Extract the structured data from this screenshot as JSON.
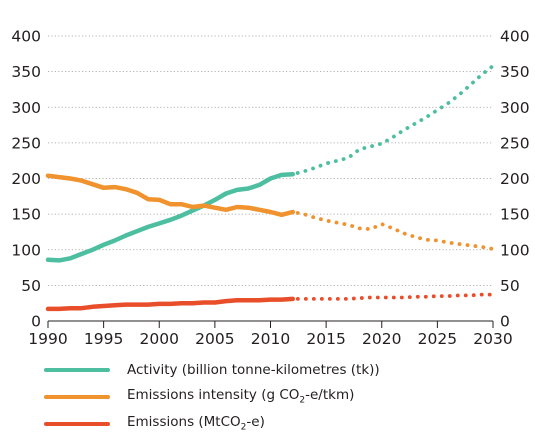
{
  "chart_data": {
    "type": "line",
    "title": "",
    "xlabel": "",
    "ylabel": "",
    "xlim": [
      1990,
      2030
    ],
    "ylim": [
      0,
      400
    ],
    "x_ticks": [
      "1990",
      "1995",
      "2000",
      "2005",
      "2010",
      "2015",
      "2020",
      "2025",
      "2030"
    ],
    "y_ticks": [
      "0",
      "50",
      "100",
      "150",
      "200",
      "250",
      "300",
      "350",
      "400"
    ],
    "grid": "horizontal dotted",
    "legend_position": "bottom-left",
    "series": [
      {
        "key": "activity",
        "name": "Activity (billion tonne-kilometres (tk))",
        "color": "#4dbfa0",
        "historical": [
          [
            1990,
            86
          ],
          [
            1991,
            85
          ],
          [
            1992,
            88
          ],
          [
            1993,
            94
          ],
          [
            1994,
            100
          ],
          [
            1995,
            107
          ],
          [
            1996,
            113
          ],
          [
            1997,
            120
          ],
          [
            1998,
            126
          ],
          [
            1999,
            132
          ],
          [
            2000,
            137
          ],
          [
            2001,
            142
          ],
          [
            2002,
            148
          ],
          [
            2003,
            155
          ],
          [
            2004,
            162
          ],
          [
            2005,
            170
          ],
          [
            2006,
            179
          ],
          [
            2007,
            184
          ],
          [
            2008,
            186
          ],
          [
            2009,
            191
          ],
          [
            2010,
            200
          ],
          [
            2011,
            205
          ],
          [
            2012,
            206
          ]
        ],
        "projection": [
          [
            2013,
            210
          ],
          [
            2014,
            215
          ],
          [
            2015,
            221
          ],
          [
            2016,
            225
          ],
          [
            2017,
            229
          ],
          [
            2018,
            241
          ],
          [
            2019,
            245
          ],
          [
            2020,
            249
          ],
          [
            2021,
            258
          ],
          [
            2022,
            268
          ],
          [
            2023,
            277
          ],
          [
            2024,
            286
          ],
          [
            2025,
            296
          ],
          [
            2026,
            306
          ],
          [
            2027,
            318
          ],
          [
            2028,
            332
          ],
          [
            2029,
            346
          ],
          [
            2030,
            358
          ]
        ]
      },
      {
        "key": "intensity",
        "name": "Emissions intensity (g CO2-e/tkm)",
        "color": "#f0922d",
        "historical": [
          [
            1990,
            204
          ],
          [
            1991,
            202
          ],
          [
            1992,
            200
          ],
          [
            1993,
            197
          ],
          [
            1994,
            192
          ],
          [
            1995,
            187
          ],
          [
            1996,
            188
          ],
          [
            1997,
            185
          ],
          [
            1998,
            180
          ],
          [
            1999,
            171
          ],
          [
            2000,
            170
          ],
          [
            2001,
            164
          ],
          [
            2002,
            164
          ],
          [
            2003,
            160
          ],
          [
            2004,
            162
          ],
          [
            2005,
            159
          ],
          [
            2006,
            156
          ],
          [
            2007,
            160
          ],
          [
            2008,
            159
          ],
          [
            2009,
            156
          ],
          [
            2010,
            153
          ],
          [
            2011,
            149
          ],
          [
            2012,
            153
          ]
        ],
        "projection": [
          [
            2013,
            150
          ],
          [
            2014,
            145
          ],
          [
            2015,
            141
          ],
          [
            2016,
            138
          ],
          [
            2017,
            135
          ],
          [
            2018,
            130
          ],
          [
            2019,
            129
          ],
          [
            2020,
            136
          ],
          [
            2021,
            130
          ],
          [
            2022,
            123
          ],
          [
            2023,
            118
          ],
          [
            2024,
            114
          ],
          [
            2025,
            113
          ],
          [
            2026,
            110
          ],
          [
            2027,
            108
          ],
          [
            2028,
            106
          ],
          [
            2029,
            104
          ],
          [
            2030,
            101
          ]
        ]
      },
      {
        "key": "emissions",
        "name": "Emissions (MtCO2-e)",
        "color": "#e94e2a",
        "historical": [
          [
            1990,
            17
          ],
          [
            1991,
            17
          ],
          [
            1992,
            18
          ],
          [
            1993,
            18
          ],
          [
            1994,
            20
          ],
          [
            1995,
            21
          ],
          [
            1996,
            22
          ],
          [
            1997,
            23
          ],
          [
            1998,
            23
          ],
          [
            1999,
            23
          ],
          [
            2000,
            24
          ],
          [
            2001,
            24
          ],
          [
            2002,
            25
          ],
          [
            2003,
            25
          ],
          [
            2004,
            26
          ],
          [
            2005,
            26
          ],
          [
            2006,
            28
          ],
          [
            2007,
            29
          ],
          [
            2008,
            29
          ],
          [
            2009,
            29
          ],
          [
            2010,
            30
          ],
          [
            2011,
            30
          ],
          [
            2012,
            31
          ]
        ],
        "projection": [
          [
            2013,
            31
          ],
          [
            2014,
            31
          ],
          [
            2015,
            31
          ],
          [
            2016,
            31
          ],
          [
            2017,
            31
          ],
          [
            2018,
            32
          ],
          [
            2019,
            33
          ],
          [
            2020,
            33
          ],
          [
            2021,
            33
          ],
          [
            2022,
            33
          ],
          [
            2023,
            34
          ],
          [
            2024,
            34
          ],
          [
            2025,
            35
          ],
          [
            2026,
            35
          ],
          [
            2027,
            36
          ],
          [
            2028,
            36
          ],
          [
            2029,
            37
          ],
          [
            2030,
            37
          ]
        ]
      }
    ]
  },
  "legend": {
    "items": [
      {
        "key": "activity",
        "color": "#4dbfa0",
        "text": "Activity (billion tonne-kilometres (tk))"
      },
      {
        "key": "intensity",
        "color": "#f0922d",
        "pre": "Emissions intensity (g CO",
        "sub": "2",
        "post": "-e/tkm)"
      },
      {
        "key": "emissions",
        "color": "#e94e2a",
        "pre": "Emissions (MtCO",
        "sub": "2",
        "post": "-e)"
      }
    ]
  }
}
